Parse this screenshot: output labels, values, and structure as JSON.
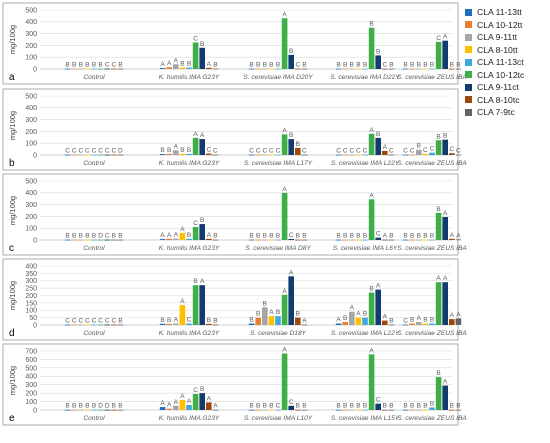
{
  "colors": [
    "#1f6fbf",
    "#ed7d31",
    "#a5a5a5",
    "#ffc000",
    "#3ea8dc",
    "#3fae49",
    "#133c6e",
    "#9e480e",
    "#636363"
  ],
  "legend": [
    "CLA 11-13tt",
    "CLA 10-12tt",
    "CLA 9-11tt",
    "CLA 8-10tt",
    "CLA 11-13ct",
    "CLA 10-12tc",
    "CLA 9-11ct",
    "CLA 8-10tc",
    "CLA 7-9tc"
  ],
  "chart_data": [
    {
      "type": "bar",
      "panel": "a",
      "ylabel": "mg/100g",
      "ylim": [
        0,
        500
      ],
      "yticks": [
        0,
        100,
        200,
        300,
        400,
        500
      ],
      "grid": true,
      "categories": [
        "Control",
        "K. humilis IMA G23Y",
        "S. cerevisiae IMA D20Y",
        "S. cerevisiae IMA D22Y",
        "S. cerevisiae ZEUS IBA"
      ],
      "values": [
        [
          3,
          3,
          3,
          3,
          3,
          3,
          3,
          3,
          3
        ],
        [
          8,
          15,
          40,
          12,
          12,
          225,
          180,
          10,
          3
        ],
        [
          3,
          3,
          3,
          3,
          3,
          430,
          120,
          3,
          3
        ],
        [
          3,
          3,
          3,
          3,
          3,
          350,
          115,
          3,
          3
        ],
        [
          3,
          3,
          3,
          3,
          3,
          230,
          240,
          3,
          3
        ]
      ],
      "labels": [
        [
          "B",
          "B",
          "B",
          "B",
          "B",
          "B",
          "C",
          "C",
          "B"
        ],
        [
          "A",
          "A",
          "A",
          "B",
          "B",
          "C",
          "B",
          "A",
          "B"
        ],
        [
          "B",
          "B",
          "B",
          "B",
          "B",
          "A",
          "B",
          "C",
          "B"
        ],
        [
          "B",
          "B",
          "B",
          "B",
          "B",
          "B",
          "B",
          "C",
          "B"
        ],
        [
          "B",
          "B",
          "B",
          "B",
          "B",
          "C",
          "A",
          "B",
          "B"
        ]
      ]
    },
    {
      "type": "bar",
      "panel": "b",
      "ylabel": "mg/100g",
      "ylim": [
        0,
        500
      ],
      "yticks": [
        0,
        100,
        200,
        300,
        400,
        500
      ],
      "grid": true,
      "categories": [
        "Control",
        "K. humilis IMA G23Y",
        "S. cerevisiae IMA L17Y",
        "S. cerevisiae IMA L22Y",
        "S. cerevisiae ZEUS IBA"
      ],
      "values": [
        [
          3,
          3,
          3,
          3,
          3,
          3,
          3,
          3,
          3
        ],
        [
          8,
          10,
          40,
          10,
          10,
          145,
          135,
          12,
          3
        ],
        [
          3,
          3,
          3,
          3,
          3,
          175,
          135,
          60,
          3
        ],
        [
          3,
          3,
          3,
          3,
          3,
          180,
          145,
          35,
          3
        ],
        [
          3,
          3,
          45,
          10,
          20,
          125,
          130,
          15,
          3
        ]
      ],
      "labels": [
        [
          "C",
          "C",
          "C",
          "C",
          "C",
          "C",
          "C",
          "C",
          "D"
        ],
        [
          "B",
          "B",
          "A",
          "B",
          "B",
          "A",
          "A",
          "C",
          "C"
        ],
        [
          "C",
          "C",
          "C",
          "C",
          "C",
          "A",
          "B",
          "B",
          "C"
        ],
        [
          "C",
          "C",
          "C",
          "C",
          "C",
          "A",
          "B",
          "A",
          "C"
        ],
        [
          "C",
          "C",
          "B",
          "C",
          "C",
          "B",
          "B",
          "C",
          "C"
        ]
      ]
    },
    {
      "type": "bar",
      "panel": "c",
      "ylabel": "mg/100g",
      "ylim": [
        0,
        500
      ],
      "yticks": [
        0,
        100,
        200,
        300,
        400,
        500
      ],
      "grid": true,
      "categories": [
        "Control",
        "K. humilis IMA G23Y",
        "S. cerevisiae IMA D8Y",
        "S. cerevisiae IMA L6Y",
        "S. cerevisiae ZEUS IBA"
      ],
      "values": [
        [
          3,
          3,
          3,
          3,
          3,
          3,
          3,
          3,
          3
        ],
        [
          8,
          10,
          12,
          60,
          10,
          110,
          135,
          10,
          3
        ],
        [
          3,
          3,
          3,
          3,
          3,
          400,
          8,
          3,
          3
        ],
        [
          3,
          3,
          3,
          3,
          3,
          345,
          20,
          3,
          3
        ],
        [
          3,
          3,
          3,
          3,
          3,
          230,
          195,
          10,
          5
        ]
      ],
      "labels": [
        [
          "B",
          "B",
          "B",
          "B",
          "B",
          "D",
          "C",
          "B",
          "B"
        ],
        [
          "A",
          "A",
          "A",
          "A",
          "B",
          "C",
          "B",
          "A",
          "B"
        ],
        [
          "B",
          "B",
          "B",
          "B",
          "B",
          "A",
          "C",
          "B",
          "B"
        ],
        [
          "B",
          "B",
          "B",
          "B",
          "B",
          "A",
          "C",
          "A",
          "B"
        ],
        [
          "B",
          "B",
          "B",
          "B",
          "B",
          "B",
          "A",
          "A",
          "A"
        ]
      ]
    },
    {
      "type": "bar",
      "panel": "d",
      "ylabel": "mg/100g",
      "ylim": [
        0,
        400
      ],
      "yticks": [
        0,
        50,
        100,
        150,
        200,
        250,
        300,
        350,
        400
      ],
      "grid": true,
      "categories": [
        "Control",
        "K. humilis IMA G23Y",
        "S. cerevisiae D18Y",
        "S. cerevisiae IMA L22Y",
        "S. cerevisiae ZEUS IBA"
      ],
      "values": [
        [
          3,
          3,
          3,
          3,
          3,
          3,
          3,
          3,
          3
        ],
        [
          8,
          8,
          10,
          135,
          10,
          270,
          270,
          8,
          3
        ],
        [
          10,
          50,
          120,
          60,
          60,
          205,
          330,
          50,
          3
        ],
        [
          10,
          20,
          90,
          50,
          50,
          220,
          240,
          30,
          3
        ],
        [
          3,
          10,
          20,
          10,
          10,
          290,
          290,
          40,
          45
        ]
      ],
      "labels": [
        [
          "C",
          "C",
          "C",
          "C",
          "C",
          "C",
          "C",
          "C",
          "B"
        ],
        [
          "B",
          "B",
          "A",
          "A",
          "C",
          "B",
          "A",
          "B",
          "B"
        ],
        [
          "B",
          "B",
          "B",
          "A",
          "B",
          "A",
          "A",
          "B",
          "A"
        ],
        [
          "A",
          "B",
          "A",
          "A",
          "B",
          "B",
          "A",
          "A",
          "B"
        ],
        [
          "C",
          "B",
          "A",
          "B",
          "B",
          "A",
          "A",
          "A",
          "A"
        ]
      ]
    },
    {
      "type": "bar",
      "panel": "e",
      "ylabel": "mg/100g",
      "ylim": [
        0,
        700
      ],
      "yticks": [
        0,
        100,
        200,
        300,
        400,
        500,
        600,
        700
      ],
      "grid": true,
      "categories": [
        "Control",
        "K. humilis IMA G23Y",
        "S. cerevisiae IMA L10Y",
        "S. cerevisiae IMA L15Y",
        "S. cerevisiae ZEUS IBA"
      ],
      "values": [
        [
          3,
          3,
          3,
          3,
          3,
          3,
          3,
          3,
          3
        ],
        [
          35,
          15,
          50,
          120,
          60,
          190,
          200,
          90,
          3
        ],
        [
          3,
          3,
          3,
          3,
          3,
          670,
          50,
          3,
          3
        ],
        [
          3,
          3,
          3,
          3,
          3,
          660,
          75,
          3,
          3
        ],
        [
          3,
          3,
          3,
          3,
          30,
          390,
          290,
          3,
          3
        ]
      ],
      "labels": [
        [
          "B",
          "B",
          "B",
          "B",
          "B",
          "D",
          "D",
          "B",
          "B"
        ],
        [
          "A",
          "A",
          "A",
          "A",
          "A",
          "C",
          "B",
          "A",
          "A"
        ],
        [
          "B",
          "B",
          "B",
          "B",
          "C",
          "A",
          "C",
          "B",
          "B"
        ],
        [
          "B",
          "B",
          "B",
          "B",
          "B",
          "A",
          "C",
          "B",
          "B"
        ],
        [
          "B",
          "B",
          "B",
          "B",
          "B",
          "B",
          "A",
          "B",
          "B"
        ]
      ]
    }
  ]
}
